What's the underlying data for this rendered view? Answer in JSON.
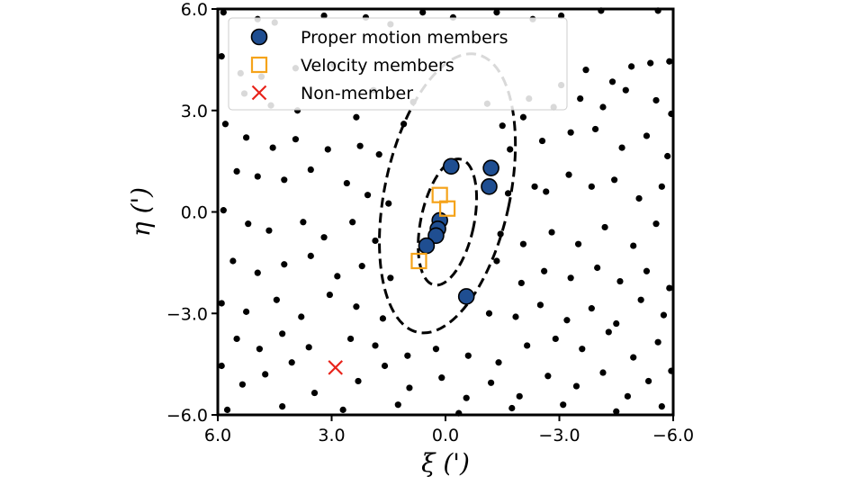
{
  "chart_data": {
    "type": "scatter",
    "xlabel": "ξ (')",
    "ylabel": "η (')",
    "xlim": [
      6.0,
      -6.0
    ],
    "ylim": [
      -6.0,
      6.0
    ],
    "xticks": [
      "6.0",
      "3.0",
      "0.0",
      "−3.0",
      "−6.0"
    ],
    "xtick_values": [
      6.0,
      3.0,
      0.0,
      -3.0,
      -6.0
    ],
    "yticks": [
      "6.0",
      "3.0",
      "0.0",
      "−3.0",
      "−6.0"
    ],
    "ytick_values": [
      6.0,
      3.0,
      0.0,
      -3.0,
      -6.0
    ],
    "grid": false,
    "legend_position": "top-left",
    "colors": {
      "background_stars": "#000000",
      "proper_motion_fill": "#1f4e91",
      "proper_motion_edge": "#000000",
      "velocity_edge": "#f5a31a",
      "non_member": "#e8231a",
      "ellipse": "#000000"
    },
    "series": [
      {
        "name": "Proper motion members",
        "marker": "circle",
        "points": [
          [
            -0.15,
            1.35
          ],
          [
            -1.2,
            1.3
          ],
          [
            -1.15,
            0.75
          ],
          [
            0.15,
            -0.25
          ],
          [
            0.2,
            -0.5
          ],
          [
            0.25,
            -0.7
          ],
          [
            0.5,
            -1.0
          ],
          [
            -0.55,
            -2.5
          ]
        ]
      },
      {
        "name": "Velocity members",
        "marker": "square",
        "points": [
          [
            0.15,
            0.5
          ],
          [
            -0.05,
            0.1
          ],
          [
            0.7,
            -1.45
          ]
        ]
      },
      {
        "name": "Non-member",
        "marker": "x",
        "points": [
          [
            2.9,
            -4.6
          ]
        ]
      }
    ],
    "ellipses": [
      {
        "center": [
          -0.05,
          -0.3
        ],
        "semi_major": 1.9,
        "semi_minor": 0.7,
        "tilt_deg": 12,
        "style": "dashed"
      },
      {
        "center": [
          -0.05,
          0.55
        ],
        "semi_major": 4.2,
        "semi_minor": 1.65,
        "tilt_deg": 12,
        "style": "dashed"
      }
    ],
    "background_stars": [
      [
        5.85,
        5.9
      ],
      [
        4.95,
        5.7
      ],
      [
        4.5,
        5.6
      ],
      [
        3.2,
        5.8
      ],
      [
        2.1,
        5.75
      ],
      [
        1.45,
        5.55
      ],
      [
        0.6,
        5.9
      ],
      [
        -0.2,
        5.75
      ],
      [
        -1.35,
        5.9
      ],
      [
        -2.3,
        5.7
      ],
      [
        -3.05,
        5.8
      ],
      [
        -4.1,
        5.95
      ],
      [
        -5.6,
        5.95
      ],
      [
        5.9,
        4.6
      ],
      [
        5.4,
        4.1
      ],
      [
        4.85,
        4.0
      ],
      [
        3.95,
        4.25
      ],
      [
        2.95,
        4.35
      ],
      [
        1.9,
        3.6
      ],
      [
        0.85,
        3.25
      ],
      [
        -1.1,
        3.2
      ],
      [
        -2.2,
        3.35
      ],
      [
        -3.05,
        3.75
      ],
      [
        -3.7,
        4.2
      ],
      [
        -4.4,
        3.85
      ],
      [
        -4.9,
        4.3
      ],
      [
        -5.4,
        4.4
      ],
      [
        -5.9,
        4.45
      ],
      [
        5.3,
        3.5
      ],
      [
        4.6,
        3.15
      ],
      [
        3.9,
        3.0
      ],
      [
        2.35,
        2.8
      ],
      [
        1.1,
        2.6
      ],
      [
        -1.5,
        2.55
      ],
      [
        -2.05,
        2.8
      ],
      [
        -2.85,
        3.1
      ],
      [
        -3.55,
        3.35
      ],
      [
        -4.15,
        3.1
      ],
      [
        -4.75,
        3.6
      ],
      [
        -5.55,
        3.3
      ],
      [
        -5.95,
        2.9
      ],
      [
        5.8,
        2.6
      ],
      [
        5.25,
        2.2
      ],
      [
        4.55,
        1.9
      ],
      [
        3.95,
        2.15
      ],
      [
        3.1,
        1.85
      ],
      [
        2.25,
        1.95
      ],
      [
        1.75,
        1.7
      ],
      [
        -1.7,
        1.85
      ],
      [
        -2.55,
        2.1
      ],
      [
        -3.3,
        2.35
      ],
      [
        -3.95,
        2.45
      ],
      [
        -4.65,
        1.9
      ],
      [
        -5.3,
        2.25
      ],
      [
        -5.85,
        1.65
      ],
      [
        5.5,
        1.2
      ],
      [
        4.95,
        1.05
      ],
      [
        4.25,
        0.95
      ],
      [
        3.55,
        1.25
      ],
      [
        2.6,
        0.85
      ],
      [
        2.05,
        0.5
      ],
      [
        1.5,
        0.25
      ],
      [
        -1.65,
        0.55
      ],
      [
        -2.35,
        0.75
      ],
      [
        -2.65,
        0.6
      ],
      [
        -3.25,
        1.1
      ],
      [
        -3.85,
        0.75
      ],
      [
        -4.45,
        0.95
      ],
      [
        -5.1,
        0.4
      ],
      [
        -5.7,
        0.75
      ],
      [
        5.85,
        0.05
      ],
      [
        5.2,
        -0.35
      ],
      [
        4.65,
        -0.55
      ],
      [
        3.75,
        -0.3
      ],
      [
        3.2,
        -0.75
      ],
      [
        2.45,
        -0.3
      ],
      [
        1.85,
        -0.85
      ],
      [
        -1.45,
        -0.65
      ],
      [
        -2.05,
        -0.95
      ],
      [
        -2.8,
        -0.6
      ],
      [
        -3.5,
        -0.95
      ],
      [
        -4.2,
        -0.45
      ],
      [
        -4.95,
        -1.0
      ],
      [
        -5.55,
        -0.35
      ],
      [
        5.6,
        -1.45
      ],
      [
        4.95,
        -1.8
      ],
      [
        4.25,
        -1.55
      ],
      [
        3.55,
        -1.3
      ],
      [
        2.85,
        -1.9
      ],
      [
        2.2,
        -1.6
      ],
      [
        1.45,
        -1.95
      ],
      [
        -1.35,
        -1.45
      ],
      [
        -2.0,
        -2.1
      ],
      [
        -2.6,
        -1.75
      ],
      [
        -3.3,
        -1.95
      ],
      [
        -4.0,
        -1.65
      ],
      [
        -4.6,
        -2.05
      ],
      [
        -5.3,
        -1.75
      ],
      [
        -5.9,
        -2.25
      ],
      [
        5.9,
        -2.7
      ],
      [
        5.25,
        -2.95
      ],
      [
        4.45,
        -2.6
      ],
      [
        3.8,
        -3.1
      ],
      [
        3.05,
        -2.45
      ],
      [
        2.35,
        -2.8
      ],
      [
        1.65,
        -3.15
      ],
      [
        -1.15,
        -3.0
      ],
      [
        -1.85,
        -3.1
      ],
      [
        -2.5,
        -2.75
      ],
      [
        -3.2,
        -3.2
      ],
      [
        -3.85,
        -2.85
      ],
      [
        -4.5,
        -3.3
      ],
      [
        -5.15,
        -2.6
      ],
      [
        -5.75,
        -3.05
      ],
      [
        5.5,
        -3.75
      ],
      [
        4.9,
        -4.05
      ],
      [
        4.3,
        -3.6
      ],
      [
        3.6,
        -4.0
      ],
      [
        2.5,
        -3.75
      ],
      [
        1.85,
        -3.95
      ],
      [
        1.0,
        -4.25
      ],
      [
        0.25,
        -4.05
      ],
      [
        -0.6,
        -4.25
      ],
      [
        -1.4,
        -4.45
      ],
      [
        -2.15,
        -3.95
      ],
      [
        -2.9,
        -3.75
      ],
      [
        -3.6,
        -4.05
      ],
      [
        -4.3,
        -3.55
      ],
      [
        -4.95,
        -4.3
      ],
      [
        -5.6,
        -3.85
      ],
      [
        5.9,
        -4.55
      ],
      [
        5.35,
        -5.1
      ],
      [
        4.75,
        -4.8
      ],
      [
        4.05,
        -4.45
      ],
      [
        3.45,
        -5.35
      ],
      [
        2.3,
        -5.0
      ],
      [
        1.6,
        -4.55
      ],
      [
        0.95,
        -5.2
      ],
      [
        0.1,
        -4.9
      ],
      [
        -0.55,
        -5.5
      ],
      [
        -1.2,
        -5.05
      ],
      [
        -1.95,
        -5.45
      ],
      [
        -2.7,
        -4.85
      ],
      [
        -3.45,
        -5.15
      ],
      [
        -4.15,
        -4.75
      ],
      [
        -4.8,
        -5.45
      ],
      [
        -5.35,
        -5.0
      ],
      [
        -5.95,
        -4.7
      ],
      [
        5.75,
        -5.85
      ],
      [
        4.3,
        -5.75
      ],
      [
        2.7,
        -5.85
      ],
      [
        1.25,
        -5.7
      ],
      [
        -0.35,
        -5.95
      ],
      [
        -1.75,
        -5.8
      ],
      [
        -3.1,
        -5.7
      ],
      [
        -4.5,
        -5.9
      ],
      [
        -5.7,
        -5.75
      ]
    ],
    "legend": {
      "entries": [
        "Proper motion members",
        "Velocity members",
        "Non-member"
      ]
    }
  }
}
